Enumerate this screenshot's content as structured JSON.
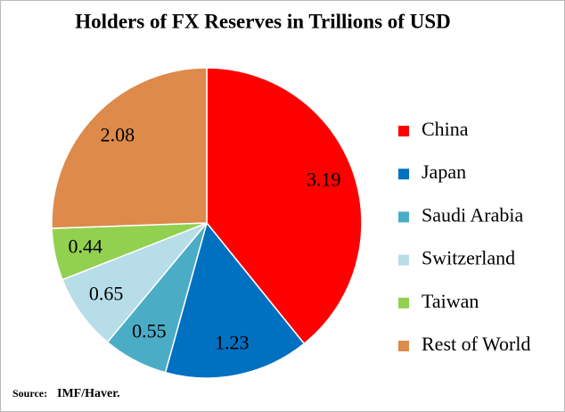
{
  "chart_data": {
    "type": "pie",
    "title": "Holders of FX Reserves in Trillions of USD",
    "categories": [
      "China",
      "Japan",
      "Saudi Arabia",
      "Switzerland",
      "Taiwan",
      "Rest of World"
    ],
    "values": [
      3.19,
      1.23,
      0.55,
      0.65,
      0.44,
      2.08
    ],
    "colors": [
      "#ff0000",
      "#0070c0",
      "#4bacc6",
      "#b7dde8",
      "#92d050",
      "#dd8a4a"
    ],
    "legend": "right",
    "source_label": "Source:",
    "source": "IMF/Haver."
  }
}
